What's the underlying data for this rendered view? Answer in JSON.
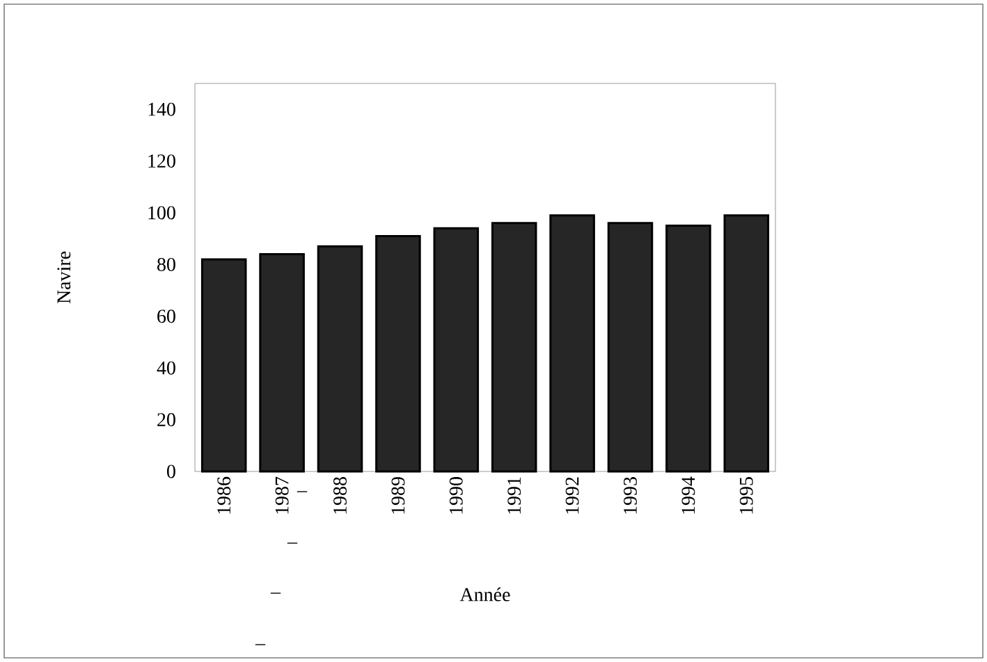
{
  "chart_data": {
    "type": "bar",
    "categories": [
      "1986",
      "1987",
      "1988",
      "1989",
      "1990",
      "1991",
      "1992",
      "1993",
      "1994",
      "1995"
    ],
    "values": [
      82,
      84,
      87,
      91,
      94,
      96,
      99,
      96,
      95,
      99
    ],
    "color": "#262626",
    "xlabel": "Année",
    "ylabel": "Navire",
    "ylim": [
      0,
      150
    ],
    "yticks": [
      0,
      20,
      40,
      60,
      80,
      100,
      120,
      140
    ],
    "grid": false,
    "annotations": [
      "–",
      "–",
      "–",
      "–"
    ]
  }
}
